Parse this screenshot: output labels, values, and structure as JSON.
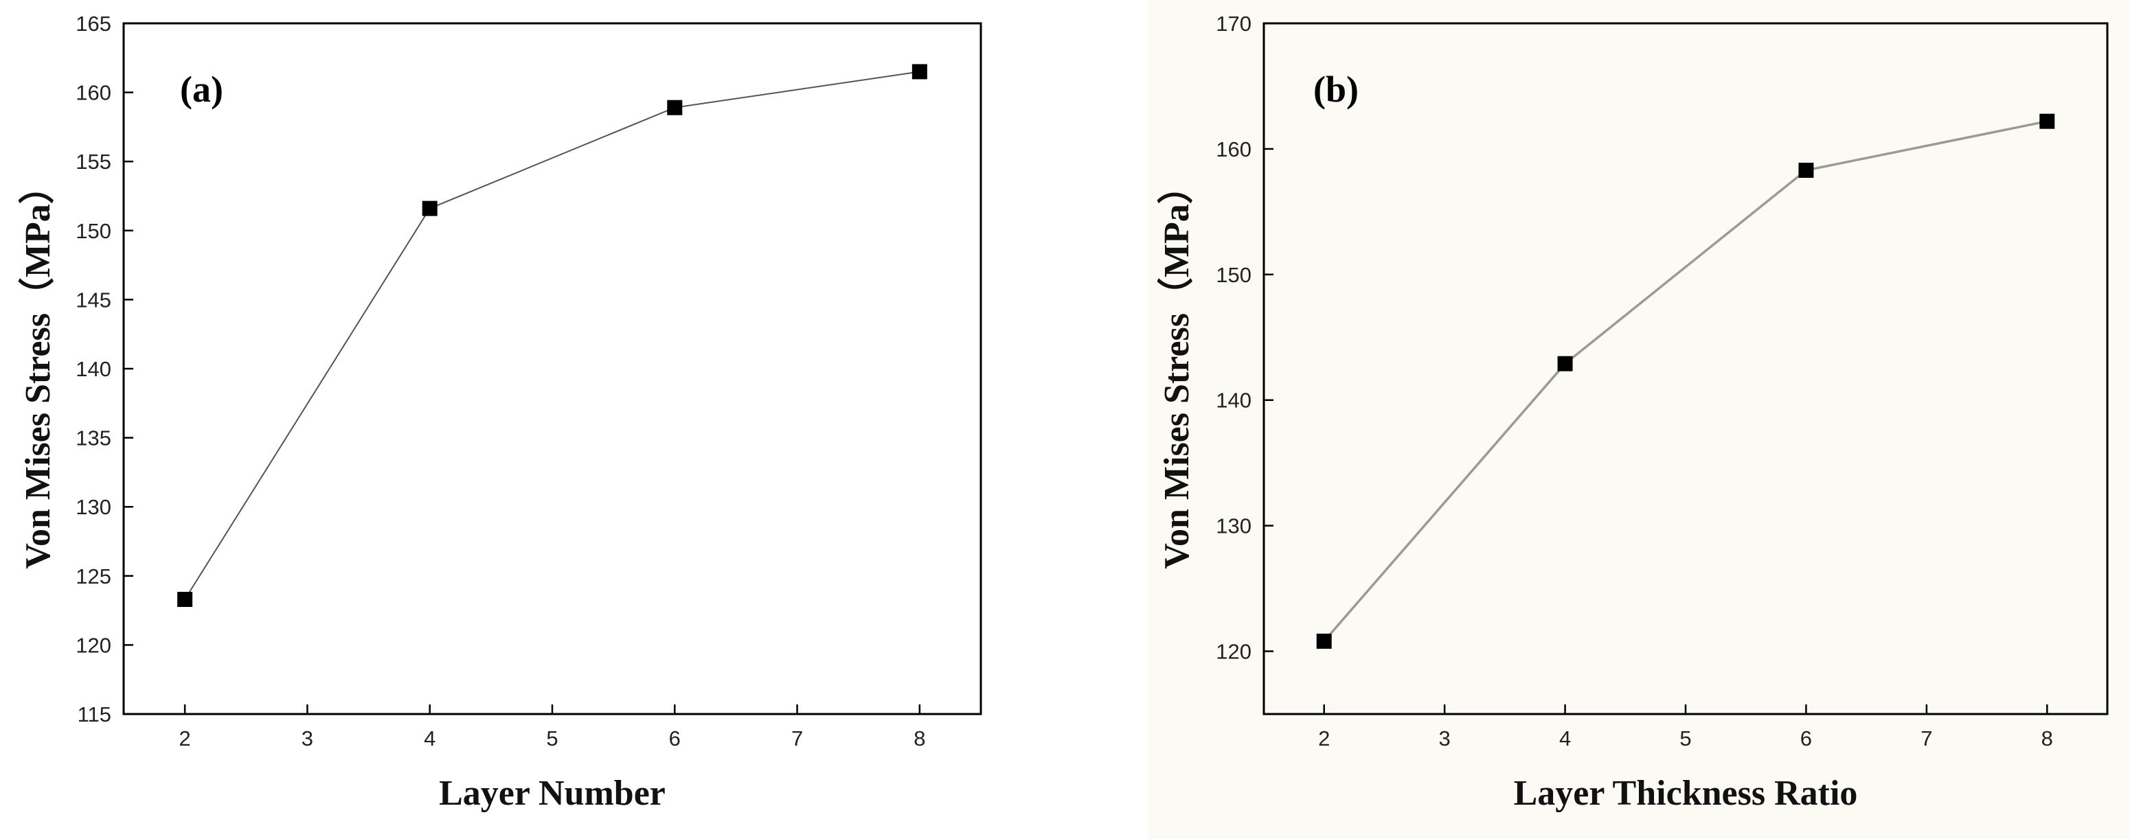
{
  "chart_data": [
    {
      "type": "line",
      "panel_label": "(a)",
      "title": "",
      "xlabel": "Layer Number",
      "ylabel": "Von Mises Stress（MPa）",
      "xlim": [
        1.5,
        8.5
      ],
      "ylim": [
        115,
        165
      ],
      "xticks": [
        2,
        3,
        4,
        5,
        6,
        7,
        8
      ],
      "yticks": [
        115,
        120,
        125,
        130,
        135,
        140,
        145,
        150,
        155,
        160,
        165
      ],
      "series": [
        {
          "name": "Von Mises Stress",
          "marker": "square",
          "x": [
            2,
            4,
            6,
            8
          ],
          "y": [
            123.3,
            151.6,
            158.9,
            161.5
          ]
        }
      ],
      "colors": {
        "background": "#ffffff",
        "line": "#555555",
        "marker": "#000000",
        "axis": "#000000"
      }
    },
    {
      "type": "line",
      "panel_label": "(b)",
      "title": "",
      "xlabel": "Layer Thickness Ratio",
      "ylabel": "Von Mises Stress（MPa）",
      "xlim": [
        1.5,
        8.5
      ],
      "ylim": [
        115,
        170
      ],
      "xticks": [
        2,
        3,
        4,
        5,
        6,
        7,
        8
      ],
      "yticks": [
        120,
        130,
        140,
        150,
        160,
        170
      ],
      "series": [
        {
          "name": "Von Mises Stress",
          "marker": "square",
          "x": [
            2,
            4,
            6,
            8
          ],
          "y": [
            120.8,
            142.9,
            158.3,
            162.2
          ]
        }
      ],
      "colors": {
        "background": "#fbfaf4",
        "line": "#9a9a9a",
        "marker": "#000000",
        "axis": "#000000"
      }
    }
  ]
}
